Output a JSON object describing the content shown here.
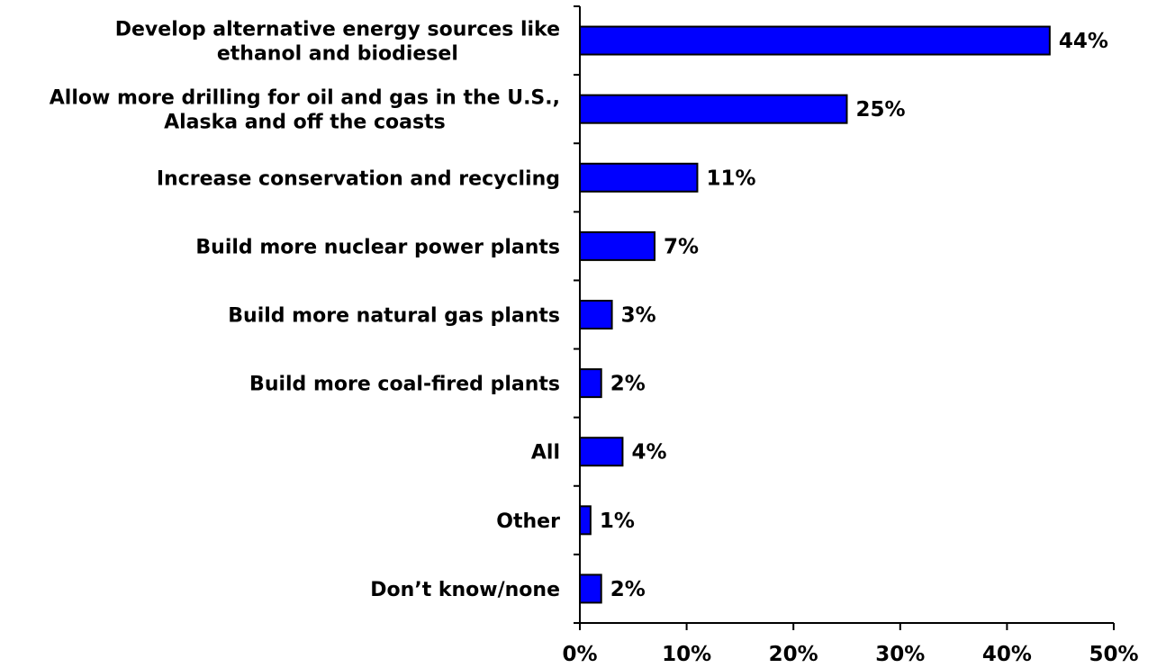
{
  "chart_data": {
    "type": "bar",
    "orientation": "horizontal",
    "categories": [
      [
        "Develop alternative energy sources like",
        "ethanol and biodiesel"
      ],
      [
        "Allow more drilling for oil and gas in the U.S.,",
        "Alaska and off the coasts"
      ],
      [
        "Increase conservation and recycling"
      ],
      [
        "Build more nuclear power plants"
      ],
      [
        "Build more natural gas plants"
      ],
      [
        "Build more coal-fired plants"
      ],
      [
        "All"
      ],
      [
        "Other"
      ],
      [
        "Don’t know/none"
      ]
    ],
    "values": [
      44,
      25,
      11,
      7,
      3,
      2,
      4,
      1,
      2
    ],
    "value_labels": [
      "44%",
      "25%",
      "11%",
      "7%",
      "3%",
      "2%",
      "4%",
      "1%",
      "2%"
    ],
    "xlim": [
      0,
      50
    ],
    "x_ticks": [
      0,
      10,
      20,
      30,
      40,
      50
    ],
    "x_tick_labels": [
      "0%",
      "10%",
      "20%",
      "30%",
      "40%",
      "50%"
    ],
    "bar_color": "#0000FF",
    "title": "",
    "xlabel": "",
    "ylabel": "",
    "grid": false,
    "legend": "none"
  }
}
